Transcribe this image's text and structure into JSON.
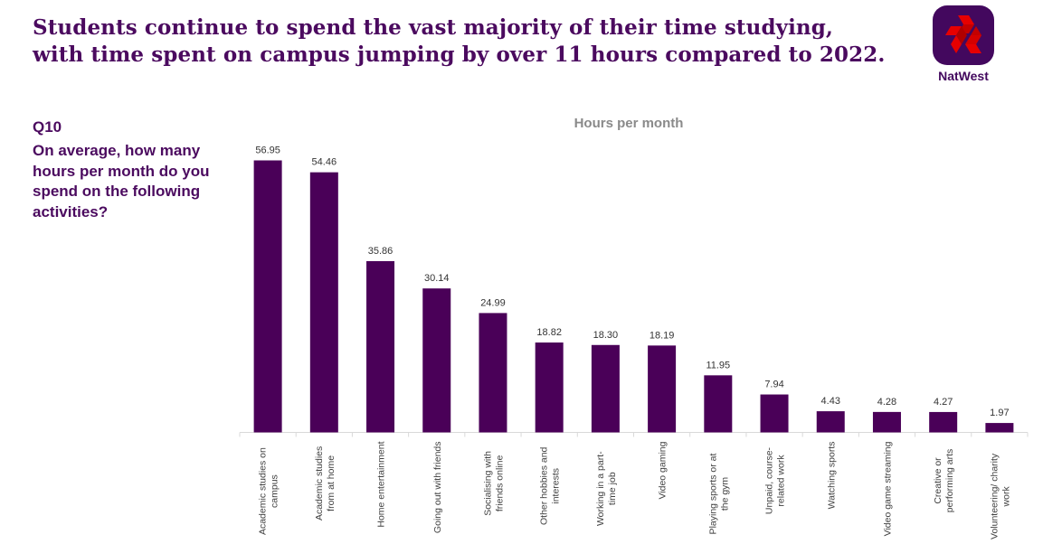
{
  "header": {
    "headline_lines": [
      "Students continue to spend the vast majority of their time studying,",
      "with time spent on campus jumping by over 11 hours compared to 2022."
    ],
    "brand_name": "NatWest",
    "logo_icon": "natwest-logo-icon"
  },
  "question": {
    "id": "Q10",
    "text": "On average, how many hours per month do you spend on the following activities?"
  },
  "colors": {
    "brand_purple": "#4b0a5f",
    "bar": "#4a0058",
    "logo_red": "#e60000",
    "title_gray": "#8a8a8a"
  },
  "chart_data": {
    "type": "bar",
    "title": "Hours per month",
    "xlabel": "",
    "ylabel": "",
    "ylim": [
      0,
      60
    ],
    "grid": false,
    "legend": "none",
    "categories": [
      [
        "Academic studies on",
        "campus"
      ],
      [
        "Academic studies",
        "from at home"
      ],
      [
        "Home entertainment"
      ],
      [
        "Going out with friends"
      ],
      [
        "Socialising with",
        "friends online"
      ],
      [
        "Other hobbies and",
        "interests"
      ],
      [
        "Working in a part-",
        "time job"
      ],
      [
        "Video gaming"
      ],
      [
        "Playing sports or at",
        "the gym"
      ],
      [
        "Unpaid, course-",
        "related work"
      ],
      [
        "Watching sports"
      ],
      [
        "Video game streaming"
      ],
      [
        "Creative or",
        "performing arts"
      ],
      [
        "Volunteering/ charity",
        "work"
      ]
    ],
    "values": [
      56.95,
      54.46,
      35.86,
      30.14,
      24.99,
      18.82,
      18.3,
      18.19,
      11.95,
      7.94,
      4.43,
      4.28,
      4.27,
      1.97
    ],
    "value_labels": [
      "56.95",
      "54.46",
      "35.86",
      "30.14",
      "24.99",
      "18.82",
      "18.30",
      "18.19",
      "11.95",
      "7.94",
      "4.43",
      "4.28",
      "4.27",
      "1.97"
    ]
  }
}
